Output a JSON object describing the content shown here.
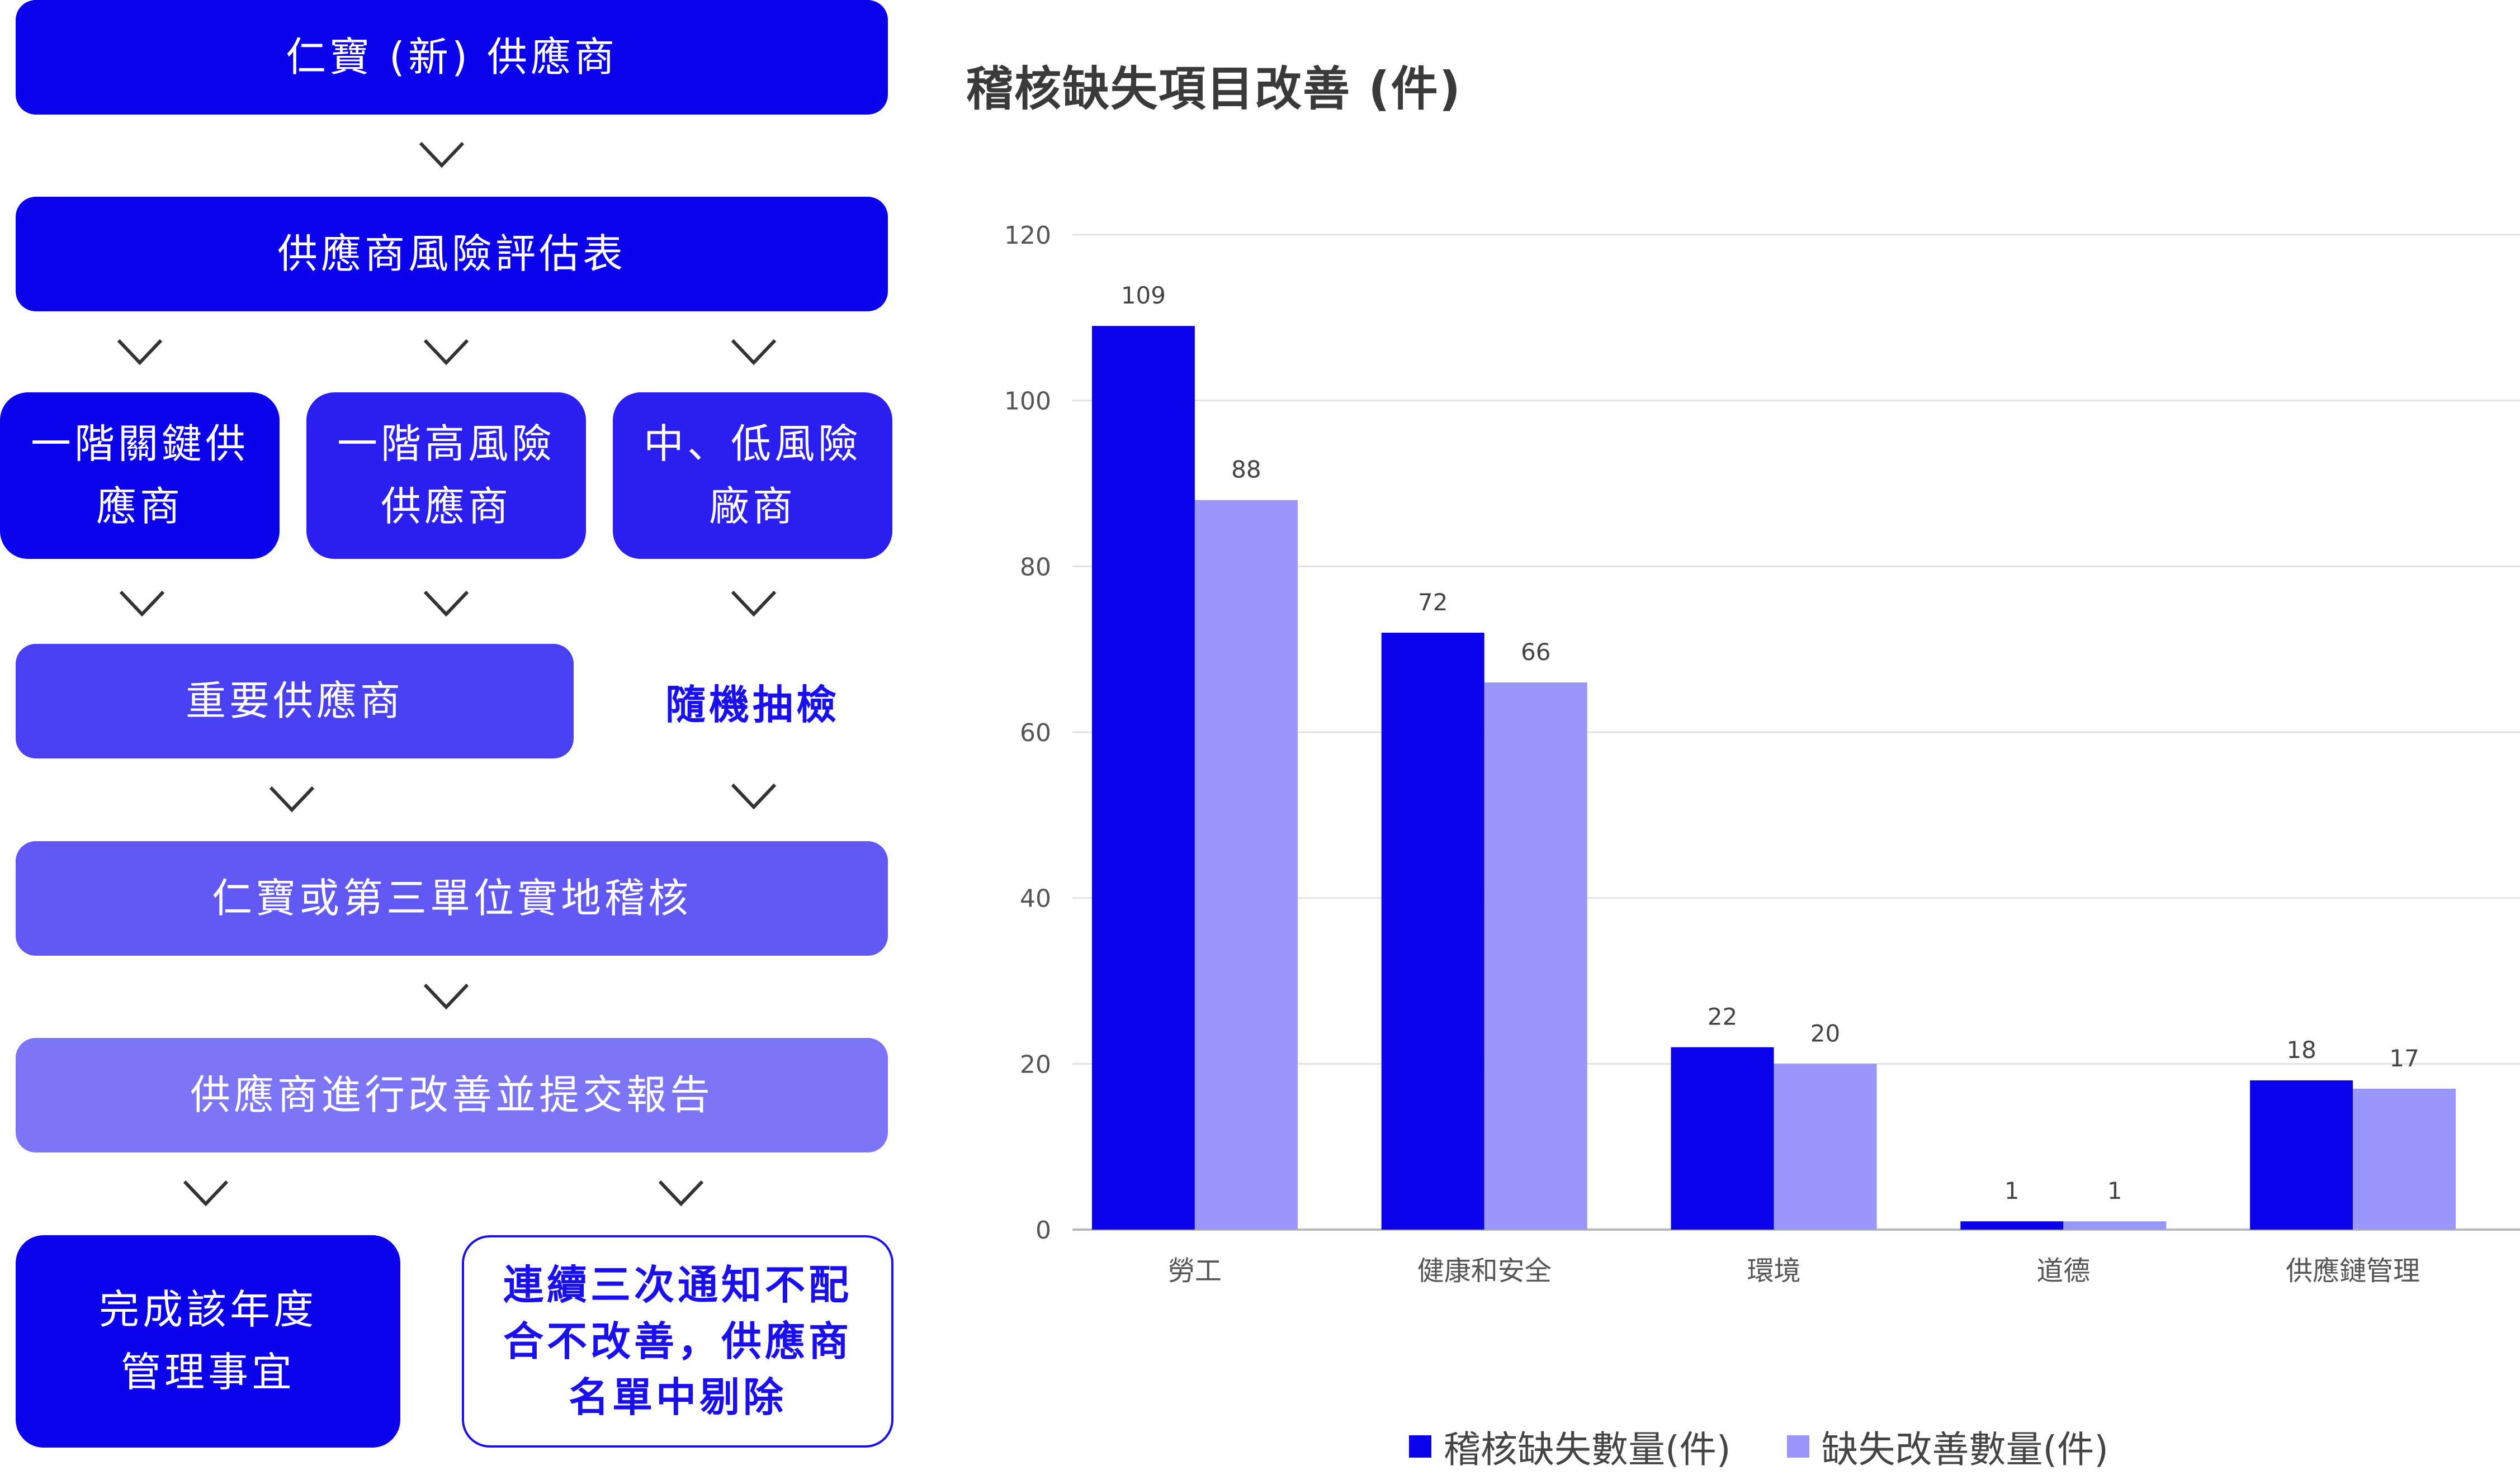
{
  "flow": {
    "step1": "仁寶 (新) 供應商",
    "step2": "供應商風險評估表",
    "tier_a_line1": "一階關鍵供",
    "tier_a_line2": "應商",
    "tier_b_line1": "一階高風險",
    "tier_b_line2": "供應商",
    "tier_c_line1": "中、低風險",
    "tier_c_line2": "廠商",
    "important": "重要供應商",
    "random_check": "隨機抽檢",
    "audit": "仁寶或第三單位實地稽核",
    "improve": "供應商進行改善並提交報告",
    "complete_line1": "完成該年度",
    "complete_line2": "管理事宜",
    "remove_line1": "連續三次通知不配",
    "remove_line2": "合不改善，供應商",
    "remove_line3": "名單中剔除"
  },
  "colors": {
    "primary": "#0a00ec",
    "secondary": "#9a97fc"
  },
  "chart_data": {
    "type": "bar",
    "title": "稽核缺失項目改善 (件)",
    "categories": [
      "勞工",
      "健康和安全",
      "環境",
      "道德",
      "供應鏈管理"
    ],
    "series": [
      {
        "name": "稽核缺失數量(件)",
        "values": [
          109,
          72,
          22,
          1,
          18
        ],
        "color": "#0a00ec"
      },
      {
        "name": "缺失改善數量(件)",
        "values": [
          88,
          66,
          20,
          1,
          17
        ],
        "color": "#9a97fc"
      }
    ],
    "ylim": [
      0,
      120
    ],
    "yticks": [
      0,
      20,
      40,
      60,
      80,
      100,
      120
    ],
    "grid": true,
    "legend_position": "bottom"
  }
}
